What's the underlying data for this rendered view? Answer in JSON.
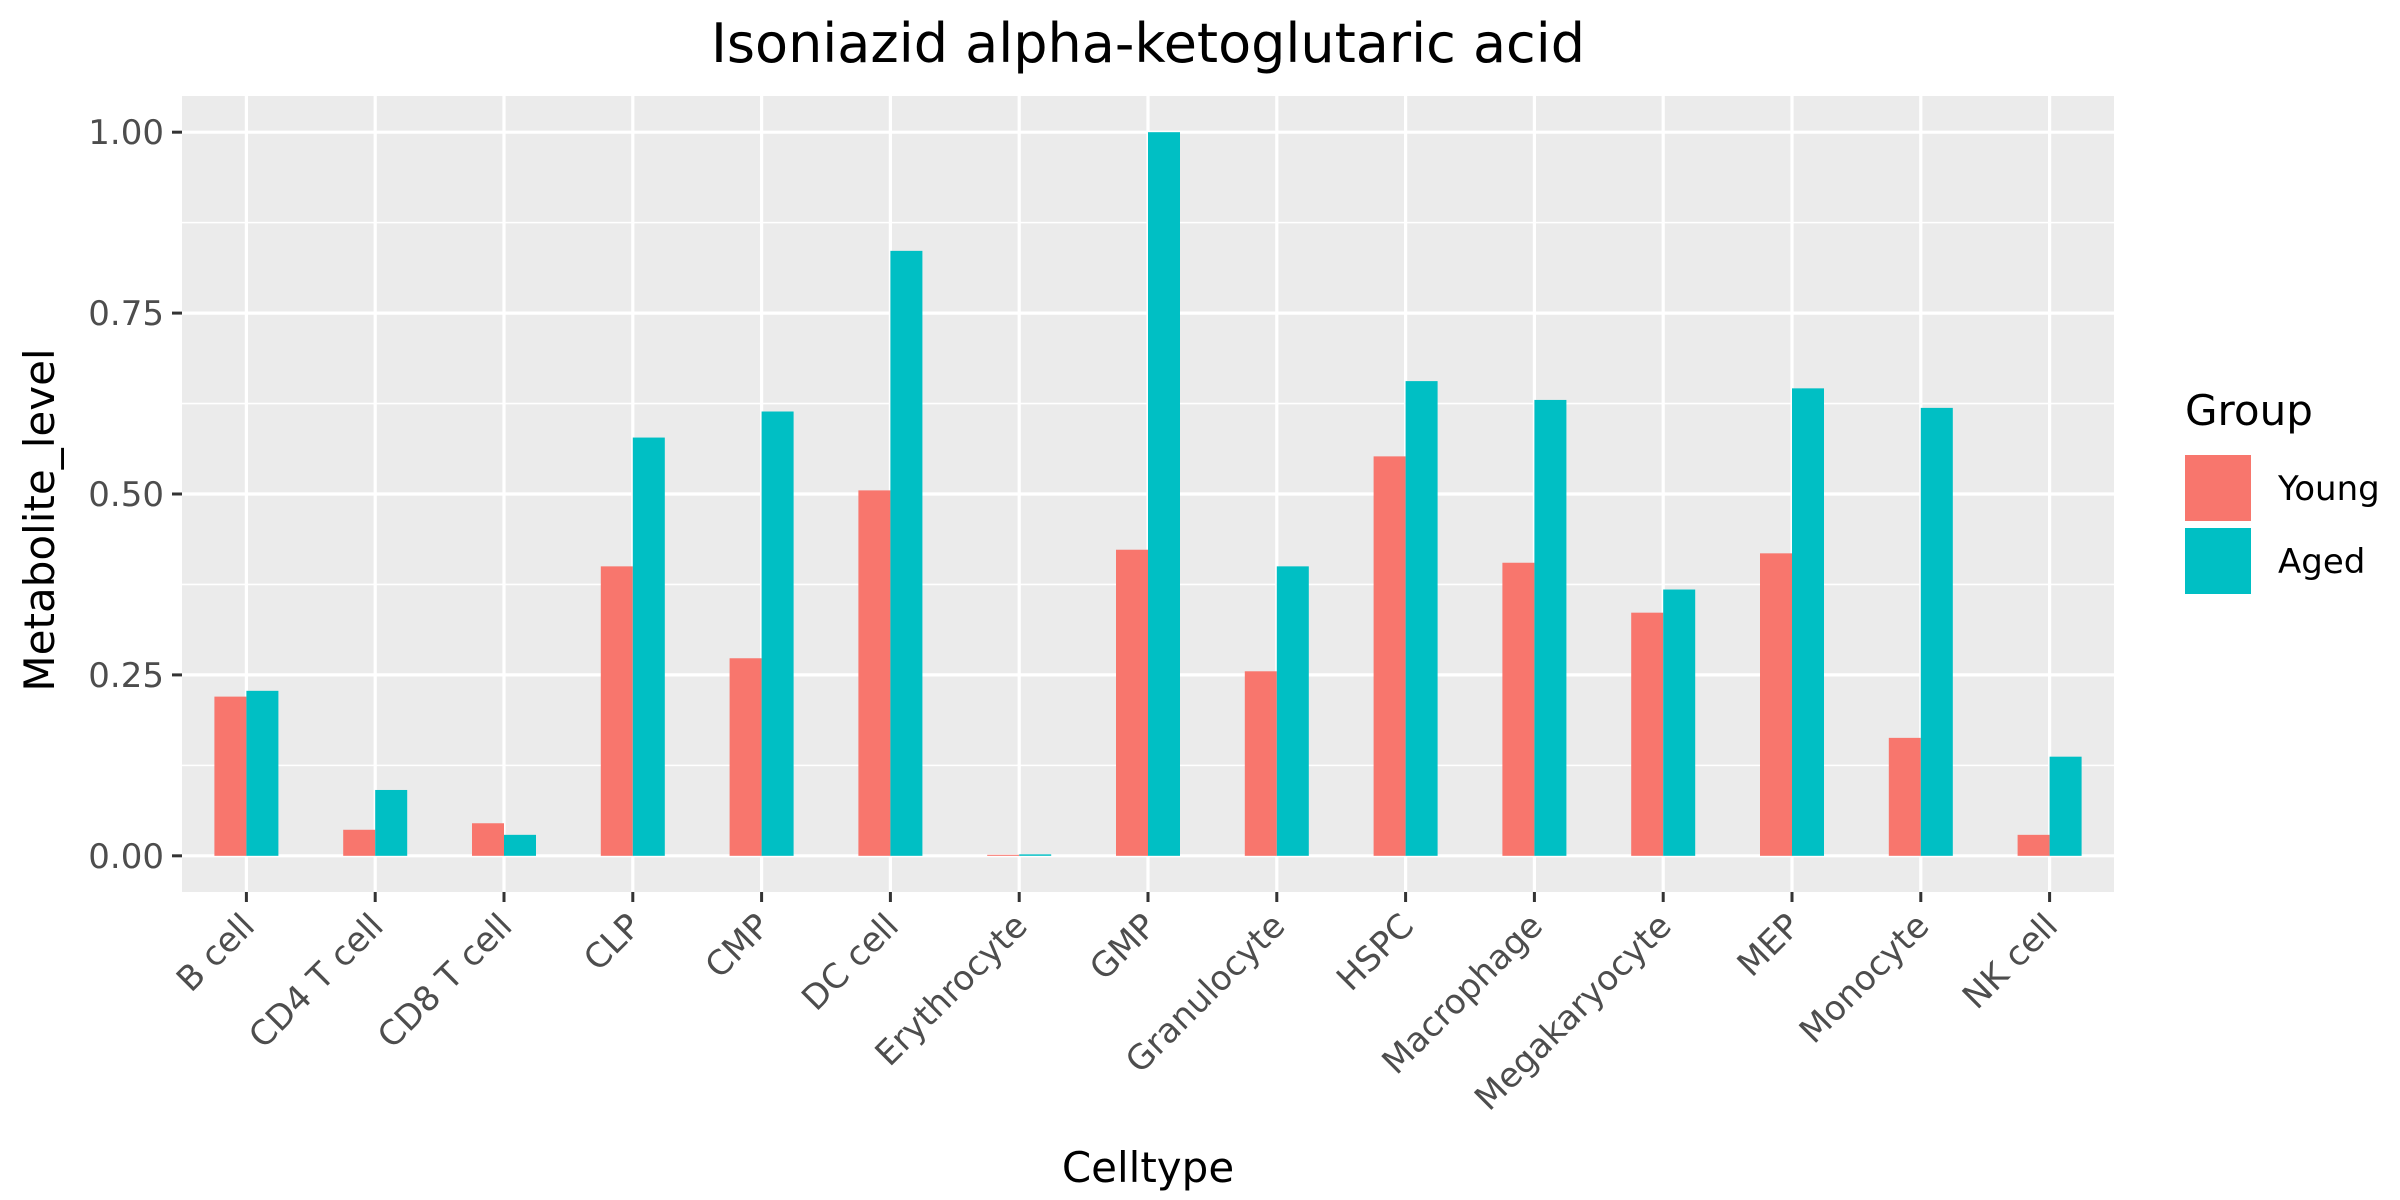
{
  "chart_data": {
    "type": "bar",
    "title": "Isoniazid alpha-ketoglutaric acid",
    "xlabel": "Celltype",
    "ylabel": "Metabolite_level",
    "categories": [
      "B cell",
      "CD4 T cell",
      "CD8 T cell",
      "CLP",
      "CMP",
      "DC cell",
      "Erythrocyte",
      "GMP",
      "Granulocyte",
      "HSPC",
      "Macrophage",
      "Megakaryocyte",
      "MEP",
      "Monocyte",
      "NK cell"
    ],
    "series": [
      {
        "name": "Young",
        "color": "#F8766D",
        "values": [
          0.22,
          0.036,
          0.045,
          0.4,
          0.273,
          0.505,
          0.0,
          0.423,
          0.255,
          0.552,
          0.405,
          0.336,
          0.418,
          0.163,
          0.029
        ]
      },
      {
        "name": "Aged",
        "color": "#00BFC4",
        "values": [
          0.228,
          0.091,
          0.029,
          0.578,
          0.614,
          0.836,
          0.002,
          1.0,
          0.4,
          0.656,
          0.63,
          0.368,
          0.646,
          0.619,
          0.137
        ]
      }
    ],
    "ylim": [
      -0.05,
      1.05
    ],
    "yticks": [
      0.0,
      0.25,
      0.5,
      0.75,
      1.0
    ],
    "ytick_labels": [
      "0.00",
      "0.25",
      "0.50",
      "0.75",
      "1.00"
    ],
    "grid": true,
    "legend": {
      "title": "Group",
      "position": "right"
    },
    "panel_background": "#EBEBEB",
    "grid_color": "#FFFFFF"
  }
}
